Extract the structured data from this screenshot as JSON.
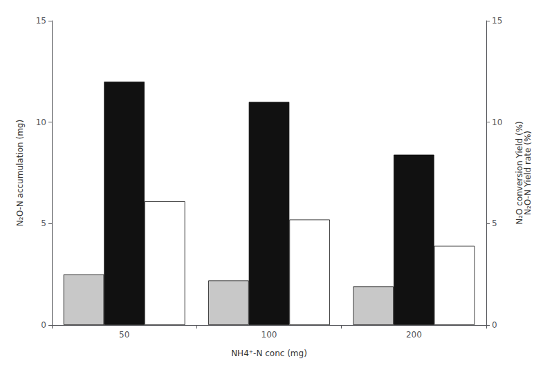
{
  "chart_data": {
    "type": "bar",
    "categories": [
      "50",
      "100",
      "200"
    ],
    "xlabel": "NH4⁺-N conc (mg)",
    "ylabel": "N₂O-N accumulation (mg)",
    "y2label": "N₂O conversion Yield (%)\nN₂O-N Yield rate (%)",
    "ylim": [
      0,
      15
    ],
    "yticks": [
      0,
      5,
      10,
      15
    ],
    "y2lim": [
      0,
      15
    ],
    "y2ticks": [
      0,
      5,
      10,
      15
    ],
    "grid": false,
    "series": [
      {
        "color": "#c8c8c8",
        "values": [
          2.5,
          2.2,
          1.9
        ]
      },
      {
        "color": "#111111",
        "values": [
          12.0,
          11.0,
          8.4
        ]
      },
      {
        "color": "#ffffff",
        "values": [
          6.1,
          5.2,
          3.9
        ]
      }
    ]
  }
}
